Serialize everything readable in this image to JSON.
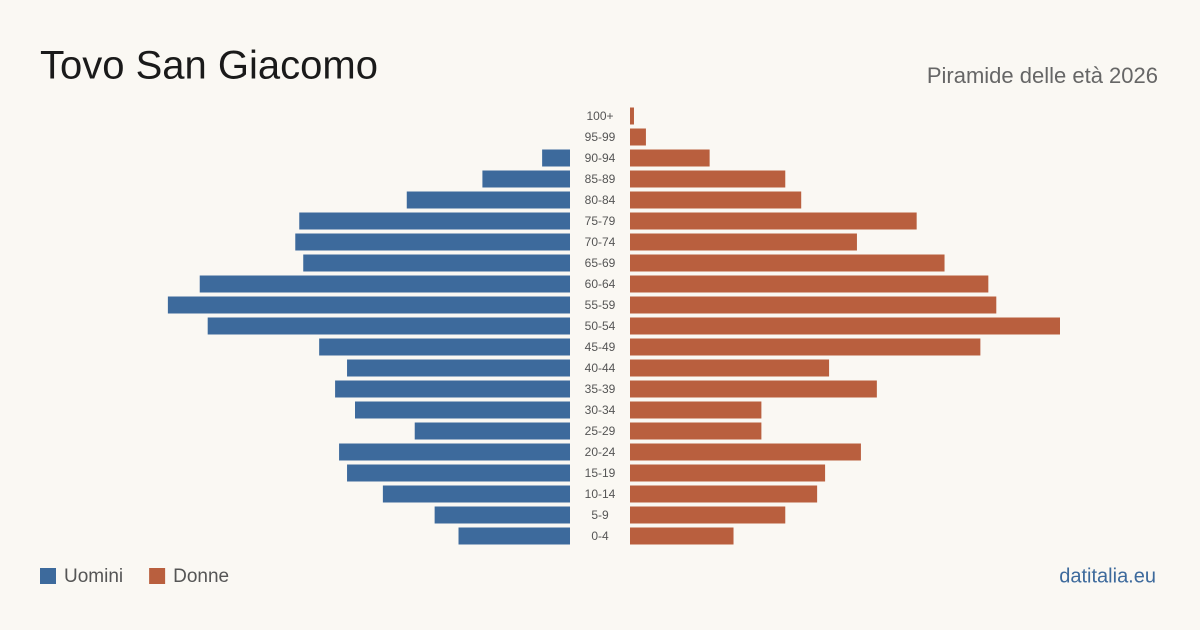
{
  "chart_data": {
    "type": "pyramid",
    "title": "Tovo San Giacomo",
    "subtitle": "Piramide delle età 2026",
    "source": "datitalia.eu",
    "categories": [
      "100+",
      "95-99",
      "90-94",
      "85-89",
      "80-84",
      "75-79",
      "70-74",
      "65-69",
      "60-64",
      "55-59",
      "50-54",
      "45-49",
      "40-44",
      "35-39",
      "30-34",
      "25-29",
      "20-24",
      "15-19",
      "10-14",
      "5-9",
      "0-4"
    ],
    "series": [
      {
        "name": "Uomini",
        "color": "#3d6a9c",
        "values": [
          0,
          0,
          7,
          22,
          41,
          68,
          69,
          67,
          93,
          101,
          91,
          63,
          56,
          59,
          54,
          39,
          58,
          56,
          47,
          34,
          28
        ]
      },
      {
        "name": "Donne",
        "color": "#b95f3e",
        "values": [
          1,
          4,
          20,
          39,
          43,
          72,
          57,
          79,
          90,
          92,
          108,
          88,
          50,
          62,
          33,
          33,
          58,
          49,
          47,
          39,
          26
        ]
      }
    ]
  }
}
